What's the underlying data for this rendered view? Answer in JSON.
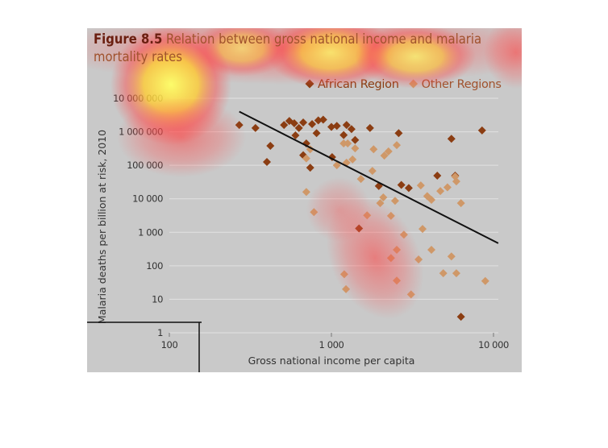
{
  "chart_data": {
    "type": "scatter",
    "title_label": "Figure 8.5",
    "title": "Relation between gross national income and malaria mortality rates",
    "xlabel": "Gross national income per capita",
    "ylabel": "Malaria deaths per billion at risk, 2010",
    "log_x": true,
    "log_y": true,
    "grid": true,
    "legend": "top-right",
    "xlim": [
      100,
      10000
    ],
    "xticks": [
      100,
      {
        "value": 1000,
        "label": "1 000"
      },
      {
        "value": 10000,
        "label": "10 000"
      }
    ],
    "ylim": [
      1,
      10000000
    ],
    "yticks": [
      1,
      10,
      100,
      {
        "value": 1000,
        "label": "1 000"
      },
      {
        "value": 10000,
        "label": "10 000"
      },
      {
        "value": 100000,
        "label": "100 000"
      },
      {
        "value": 1000000,
        "label": "1 000 000"
      },
      {
        "value": 10000000,
        "label": "10 000 000"
      }
    ],
    "trend_line": {
      "x": [
        270,
        10700
      ],
      "y": [
        4000000,
        470
      ],
      "color": "#111111"
    },
    "series": [
      {
        "name": "African Region",
        "color": "#8b3d12",
        "x": [
          270,
          340,
          420,
          400,
          510,
          550,
          590,
          630,
          670,
          760,
          830,
          890,
          810,
          700,
          670,
          740,
          600,
          1000,
          1080,
          1190,
          1240,
          1330,
          1400,
          1010,
          1730,
          2600,
          2700,
          3000,
          4500,
          5500,
          5800,
          8500,
          6300,
          1480,
          1960
        ],
        "values": [
          1600000,
          1300000,
          380000,
          126000,
          1600000,
          2100000,
          1800000,
          1300000,
          1900000,
          1700000,
          2200000,
          2300000,
          910000,
          450000,
          200000,
          85000,
          780000,
          1400000,
          1500000,
          800000,
          1600000,
          1200000,
          570000,
          175000,
          1300000,
          910000,
          26000,
          21000,
          49000,
          620000,
          49000,
          1100000,
          3,
          1300,
          24000
        ]
      },
      {
        "name": "Other Regions",
        "color": "#cf9868",
        "x": [
          700,
          740,
          700,
          780,
          1080,
          1190,
          1260,
          1350,
          1240,
          1520,
          1660,
          1790,
          1820,
          2000,
          2090,
          2120,
          2250,
          2330,
          2530,
          2470,
          2330,
          2530,
          2530,
          2800,
          3100,
          3450,
          3560,
          3650,
          4140,
          3900,
          4140,
          4900,
          4700,
          5200,
          5800,
          5900,
          5500,
          5900,
          6300,
          8900,
          1200,
          1230,
          1400
        ],
        "values": [
          160000,
          300000,
          16000,
          4000,
          100000,
          450000,
          450000,
          150000,
          120000,
          39000,
          3200,
          68000,
          300000,
          7400,
          11000,
          195000,
          260000,
          3100,
          400000,
          8700,
          170,
          300,
          36,
          850,
          14,
          155,
          25000,
          1260,
          9300,
          12000,
          300,
          60,
          17000,
          22000,
          46000,
          33000,
          190,
          60,
          7400,
          35,
          56,
          20,
          320000
        ]
      }
    ]
  }
}
